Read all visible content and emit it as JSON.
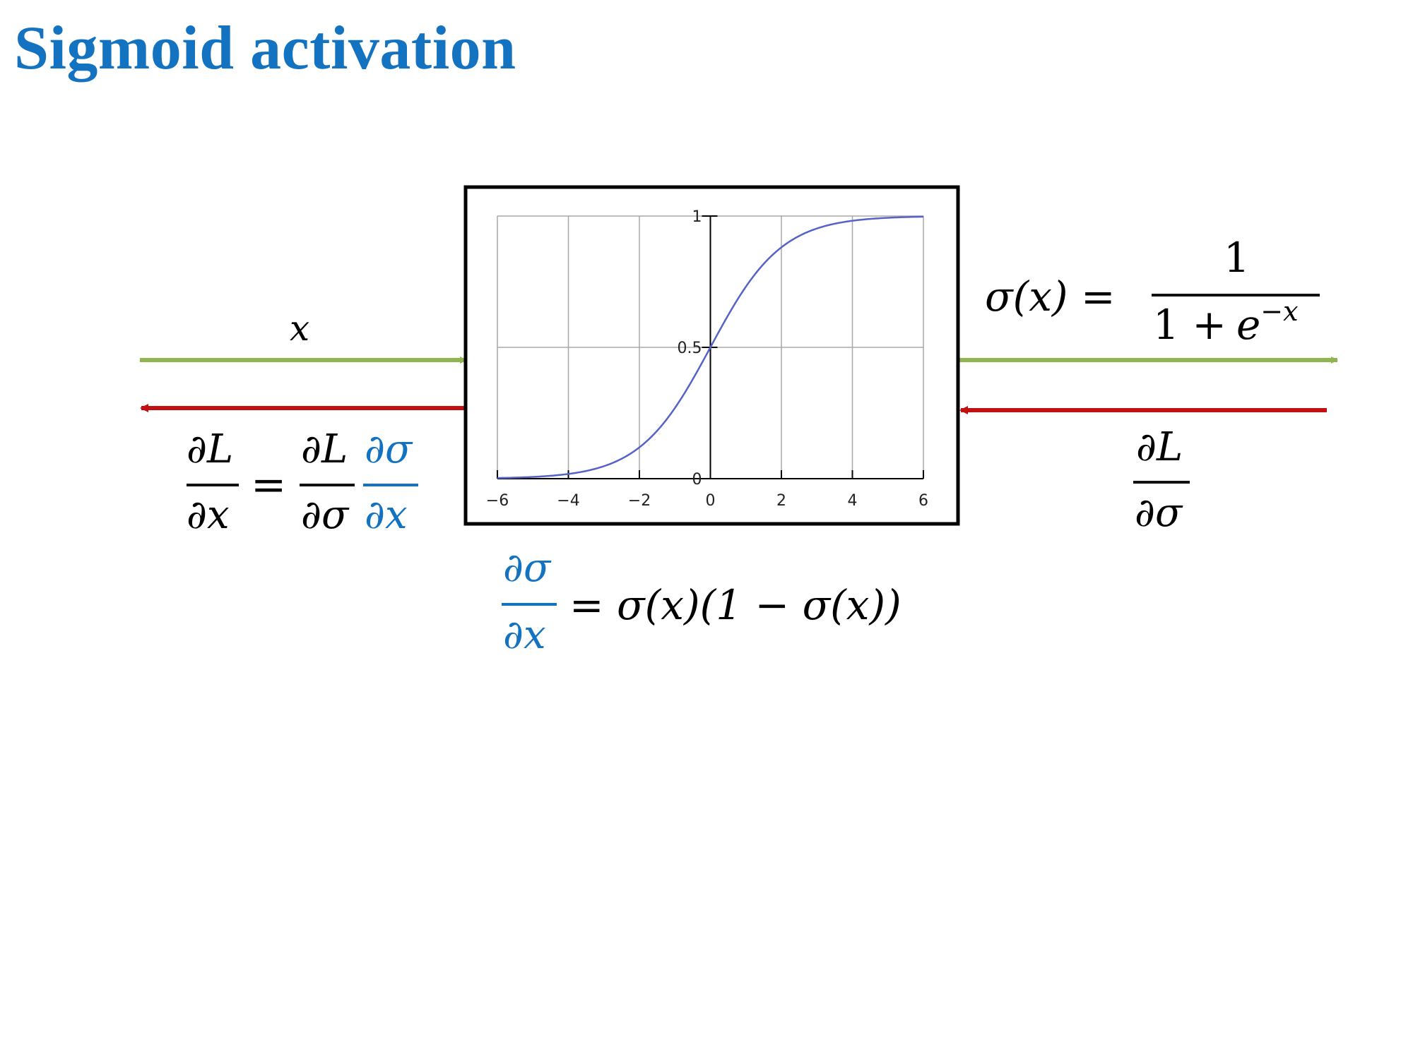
{
  "title": "Sigmoid activation",
  "colors": {
    "title": "#1473c0",
    "forward_arrow": "#8fb54f",
    "backward_arrow": "#c01010",
    "highlight": "#1473c0",
    "curve": "#5563c8"
  },
  "labels": {
    "input_x": "x",
    "partial": "∂",
    "L": "L",
    "x": "x",
    "sigma": "σ",
    "equals": "=",
    "one": "1",
    "sigma_of_x": "σ(x) =",
    "denominator_lead": "1 +",
    "e": "e",
    "neg_x": "−x",
    "derivative_rhs": "= σ(x)(1 − σ(x))"
  },
  "chart_data": {
    "type": "line",
    "function": "sigmoid",
    "xlim": [
      -6,
      6
    ],
    "ylim": [
      0,
      1
    ],
    "x_ticks": [
      "−6",
      "−4",
      "−2",
      "0",
      "2",
      "4",
      "6"
    ],
    "x_tick_values": [
      -6,
      -4,
      -2,
      0,
      2,
      4,
      6
    ],
    "y_ticks": [
      "0",
      "0.5",
      "1"
    ],
    "y_tick_values": [
      0,
      0.5,
      1
    ],
    "grid": true,
    "x": [
      -6,
      -5,
      -4,
      -3,
      -2,
      -1,
      0,
      1,
      2,
      3,
      4,
      5,
      6
    ],
    "y": [
      0.0025,
      0.0067,
      0.018,
      0.047,
      0.119,
      0.269,
      0.5,
      0.731,
      0.881,
      0.953,
      0.982,
      0.9933,
      0.9975
    ]
  }
}
